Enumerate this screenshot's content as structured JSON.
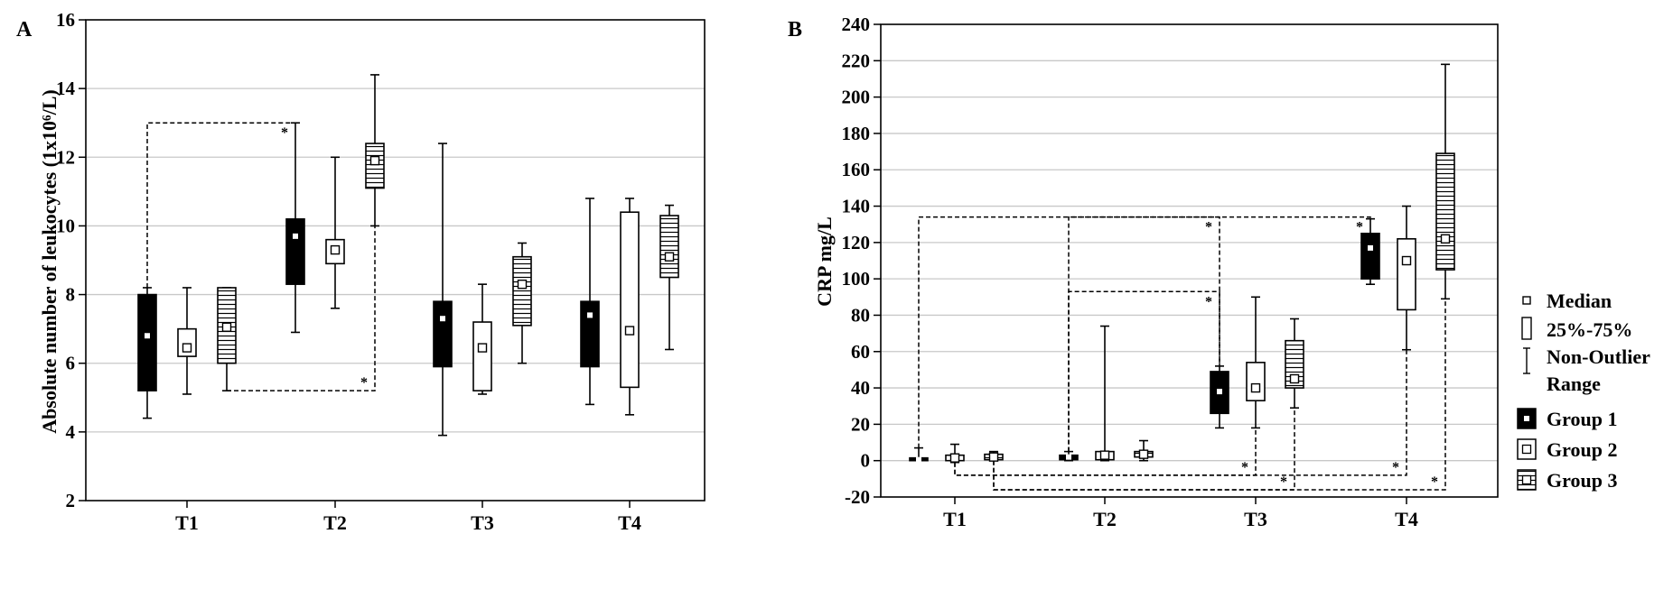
{
  "chart_data": [
    {
      "panel_label": "A",
      "type": "boxplot",
      "ylabel": "Absolute number of leukocytes (1x10⁶/L)",
      "categories": [
        "T1",
        "T2",
        "T3",
        "T4"
      ],
      "ylim": [
        2,
        16
      ],
      "yticks": [
        2,
        4,
        6,
        8,
        10,
        12,
        14,
        16
      ],
      "grid": true,
      "series": [
        {
          "name": "Group 1",
          "boxes": [
            {
              "median": 6.8,
              "q1": 5.2,
              "q3": 8.0,
              "min": 4.4,
              "max": 8.2
            },
            {
              "median": 9.7,
              "q1": 8.3,
              "q3": 10.2,
              "min": 6.9,
              "max": 13.0
            },
            {
              "median": 7.3,
              "q1": 5.9,
              "q3": 7.8,
              "min": 3.9,
              "max": 12.4
            },
            {
              "median": 7.4,
              "q1": 5.9,
              "q3": 7.8,
              "min": 4.8,
              "max": 10.8
            }
          ]
        },
        {
          "name": "Group 2",
          "boxes": [
            {
              "median": 6.45,
              "q1": 6.2,
              "q3": 7.0,
              "min": 5.1,
              "max": 8.2
            },
            {
              "median": 9.3,
              "q1": 8.9,
              "q3": 9.6,
              "min": 7.6,
              "max": 12.0
            },
            {
              "median": 6.45,
              "q1": 5.2,
              "q3": 7.2,
              "min": 5.1,
              "max": 8.3
            },
            {
              "median": 6.95,
              "q1": 5.3,
              "q3": 10.4,
              "min": 4.5,
              "max": 10.8
            }
          ]
        },
        {
          "name": "Group 3",
          "boxes": [
            {
              "median": 7.05,
              "q1": 6.0,
              "q3": 8.2,
              "min": 5.2,
              "max": 8.2
            },
            {
              "median": 11.9,
              "q1": 11.1,
              "q3": 12.4,
              "min": 10.0,
              "max": 14.4
            },
            {
              "median": 8.3,
              "q1": 7.1,
              "q3": 9.1,
              "min": 6.0,
              "max": 9.5
            },
            {
              "median": 9.1,
              "q1": 8.5,
              "q3": 10.3,
              "min": 6.4,
              "max": 10.6
            }
          ]
        }
      ],
      "annotations": [
        {
          "text": "*",
          "from": {
            "cat": 0,
            "series": 0
          },
          "to": {
            "cat": 1,
            "series": 0
          },
          "level": 13.0,
          "side": "top"
        },
        {
          "text": "*",
          "from": {
            "cat": 0,
            "series": 2
          },
          "to": {
            "cat": 1,
            "series": 2
          },
          "level": 5.2,
          "side": "bottom"
        }
      ]
    },
    {
      "panel_label": "B",
      "type": "boxplot",
      "ylabel": "CRP mg/L",
      "categories": [
        "T1",
        "T2",
        "T3",
        "T4"
      ],
      "ylim": [
        -20,
        240
      ],
      "yticks": [
        -20,
        0,
        20,
        40,
        60,
        80,
        100,
        120,
        140,
        160,
        180,
        200,
        220,
        240
      ],
      "grid": true,
      "series": [
        {
          "name": "Group 1",
          "boxes": [
            {
              "median": 0.5,
              "q1": 0,
              "q3": 1.5,
              "min": 0,
              "max": 7
            },
            {
              "median": 2,
              "q1": 0.5,
              "q3": 3,
              "min": 0,
              "max": 5
            },
            {
              "median": 38,
              "q1": 26,
              "q3": 49,
              "min": 18,
              "max": 52
            },
            {
              "median": 117,
              "q1": 100,
              "q3": 125,
              "min": 97,
              "max": 133
            }
          ]
        },
        {
          "name": "Group 2",
          "boxes": [
            {
              "median": 1.5,
              "q1": 0,
              "q3": 3,
              "min": -1,
              "max": 9
            },
            {
              "median": 3,
              "q1": 0.5,
              "q3": 5,
              "min": 0,
              "max": 74
            },
            {
              "median": 40,
              "q1": 33,
              "q3": 54,
              "min": 18,
              "max": 90
            },
            {
              "median": 110,
              "q1": 83,
              "q3": 122,
              "min": 61,
              "max": 140
            }
          ]
        },
        {
          "name": "Group 3",
          "boxes": [
            {
              "median": 2,
              "q1": 0.5,
              "q3": 3.5,
              "min": 0,
              "max": 5
            },
            {
              "median": 3.5,
              "q1": 2,
              "q3": 5,
              "min": 0,
              "max": 11
            },
            {
              "median": 45,
              "q1": 40,
              "q3": 66,
              "min": 29,
              "max": 78
            },
            {
              "median": 122,
              "q1": 105,
              "q3": 169,
              "min": 89,
              "max": 218
            }
          ]
        }
      ],
      "annotations": [
        {
          "text": "*",
          "from": {
            "cat": 0,
            "series": 0
          },
          "to": {
            "cat": 3,
            "series": 0
          },
          "level": 134,
          "side": "top"
        },
        {
          "text": "*",
          "from": {
            "cat": 1,
            "series": 0
          },
          "to": {
            "cat": 2,
            "series": 0
          },
          "level": 134,
          "side": "top"
        },
        {
          "text": "*",
          "from": {
            "cat": 1,
            "series": 0
          },
          "to": {
            "cat": 2,
            "series": 0
          },
          "level": 93,
          "side": "top"
        },
        {
          "text": "*",
          "from": {
            "cat": 0,
            "series": 1
          },
          "to": {
            "cat": 2,
            "series": 1
          },
          "level": -8,
          "side": "bottom"
        },
        {
          "text": "*",
          "from": {
            "cat": 0,
            "series": 1
          },
          "to": {
            "cat": 3,
            "series": 1
          },
          "level": -8,
          "side": "bottom"
        },
        {
          "text": "*",
          "from": {
            "cat": 0,
            "series": 2
          },
          "to": {
            "cat": 2,
            "series": 2
          },
          "level": -16,
          "side": "bottom"
        },
        {
          "text": "*",
          "from": {
            "cat": 0,
            "series": 2
          },
          "to": {
            "cat": 3,
            "series": 2
          },
          "level": -16,
          "side": "bottom"
        }
      ],
      "legend": {
        "position": "right",
        "items": [
          {
            "label": "Median",
            "symbol": "median"
          },
          {
            "label": "25%-75%",
            "symbol": "box"
          },
          {
            "label": "Non-Outlier Range",
            "symbol": "whisker"
          },
          {
            "label": "Group 1",
            "symbol": "group1"
          },
          {
            "label": "Group 2",
            "symbol": "group2"
          },
          {
            "label": "Group 3",
            "symbol": "group3"
          }
        ]
      }
    }
  ],
  "colors": {
    "group1": "#000000",
    "group2": "#ffffff",
    "group3_hatch": "#000000",
    "grid": "#c8c8c8"
  }
}
